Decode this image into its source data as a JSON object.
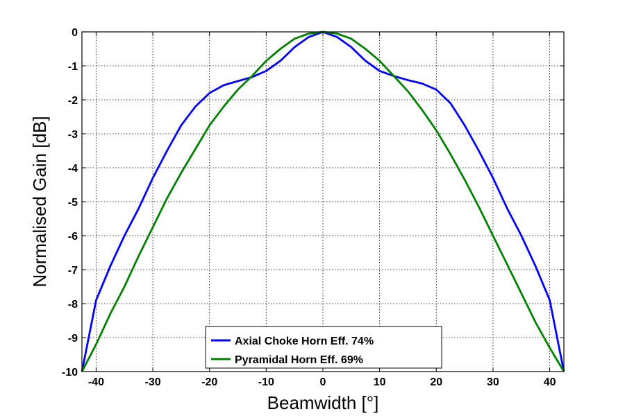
{
  "chart_data": {
    "type": "line",
    "title": "",
    "xlabel": "Beamwidth [°]",
    "ylabel": "Normalised Gain [dB]",
    "xlim": [
      -42.5,
      42.5
    ],
    "ylim": [
      -10,
      0
    ],
    "xticks": [
      -40,
      -30,
      -20,
      -10,
      0,
      10,
      20,
      30,
      40
    ],
    "yticks": [
      0,
      -1,
      -2,
      -3,
      -4,
      -5,
      -6,
      -7,
      -8,
      -9,
      -10
    ],
    "grid": true,
    "legend_position": "bottom-center",
    "series": [
      {
        "name": "Axial Choke Horn Eff. 74%",
        "color": "#0000ff",
        "x": [
          -42.5,
          -40,
          -37.5,
          -35,
          -32.5,
          -30,
          -27.5,
          -25,
          -22.5,
          -20,
          -17.5,
          -15,
          -12.5,
          -10,
          -7.5,
          -5,
          -2.5,
          0,
          2.5,
          5,
          7.5,
          10,
          12.5,
          15,
          17.5,
          20,
          22.5,
          25,
          27.5,
          30,
          32.5,
          35,
          37.5,
          40,
          42.5
        ],
        "y": [
          -10,
          -7.9,
          -6.9,
          -6.0,
          -5.2,
          -4.3,
          -3.5,
          -2.75,
          -2.2,
          -1.8,
          -1.57,
          -1.45,
          -1.33,
          -1.15,
          -0.85,
          -0.45,
          -0.15,
          0,
          -0.15,
          -0.45,
          -0.85,
          -1.15,
          -1.3,
          -1.42,
          -1.52,
          -1.7,
          -2.1,
          -2.75,
          -3.5,
          -4.3,
          -5.2,
          -6.0,
          -6.9,
          -7.9,
          -10
        ]
      },
      {
        "name": "Pyramidal Horn Eff. 69%",
        "color": "#008000",
        "x": [
          -42.5,
          -40,
          -37.5,
          -35,
          -32.5,
          -30,
          -27.5,
          -25,
          -22.5,
          -20,
          -17.5,
          -15,
          -12.5,
          -10,
          -7.5,
          -5,
          -2.5,
          0,
          2.5,
          5,
          7.5,
          10,
          12.5,
          15,
          17.5,
          20,
          22.5,
          25,
          27.5,
          30,
          32.5,
          35,
          37.5,
          40,
          42.5
        ],
        "y": [
          -10,
          -9.2,
          -8.3,
          -7.5,
          -6.6,
          -5.75,
          -4.9,
          -4.15,
          -3.45,
          -2.75,
          -2.2,
          -1.7,
          -1.3,
          -0.85,
          -0.5,
          -0.2,
          -0.05,
          0,
          -0.05,
          -0.2,
          -0.5,
          -0.85,
          -1.3,
          -1.75,
          -2.3,
          -2.9,
          -3.6,
          -4.35,
          -5.15,
          -6.0,
          -6.85,
          -7.7,
          -8.55,
          -9.3,
          -10
        ]
      }
    ]
  }
}
